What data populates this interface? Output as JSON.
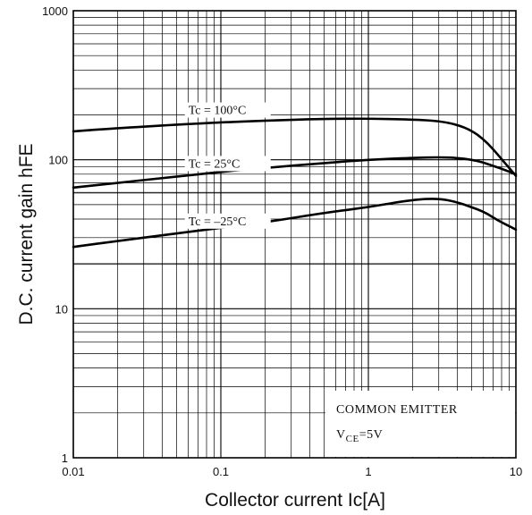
{
  "chart_data": {
    "type": "line",
    "xscale": "log",
    "yscale": "log",
    "xlim": [
      0.01,
      10
    ],
    "ylim": [
      1,
      1000
    ],
    "xlabel": "Collector current   Ic[A]",
    "ylabel": "D.C. current gain   hFE",
    "xticks": [
      "0.01",
      "0.1",
      "1",
      "10"
    ],
    "yticks": [
      "1",
      "10",
      "100",
      "1000"
    ],
    "grid": true,
    "series": [
      {
        "name": "Tc = 100°C",
        "x": [
          0.01,
          0.02,
          0.05,
          0.1,
          0.2,
          0.5,
          1,
          2,
          3,
          4,
          5,
          6,
          7,
          8,
          10
        ],
        "y": [
          155,
          163,
          172,
          178,
          183,
          188,
          189,
          186,
          182,
          172,
          157,
          138,
          118,
          101,
          78
        ]
      },
      {
        "name": "Tc = 25°C",
        "x": [
          0.01,
          0.02,
          0.05,
          0.1,
          0.2,
          0.5,
          1,
          2,
          3,
          4,
          5,
          6,
          7,
          8,
          10
        ],
        "y": [
          65,
          70,
          77,
          83,
          88,
          95,
          100,
          103,
          104,
          103,
          100,
          96,
          91,
          87,
          80
        ]
      },
      {
        "name": "Tc = –25°C",
        "x": [
          0.01,
          0.02,
          0.05,
          0.1,
          0.2,
          0.5,
          1,
          2,
          3,
          4,
          5,
          6,
          7,
          8,
          10
        ],
        "y": [
          26,
          28.5,
          32,
          35,
          38,
          44,
          48,
          54,
          55,
          52,
          48,
          45,
          41,
          38,
          34
        ]
      }
    ],
    "annotation": {
      "line1": "COMMON EMITTER",
      "line2_main": "V",
      "line2_sub": "CE",
      "line2_rest": "=5V"
    }
  }
}
